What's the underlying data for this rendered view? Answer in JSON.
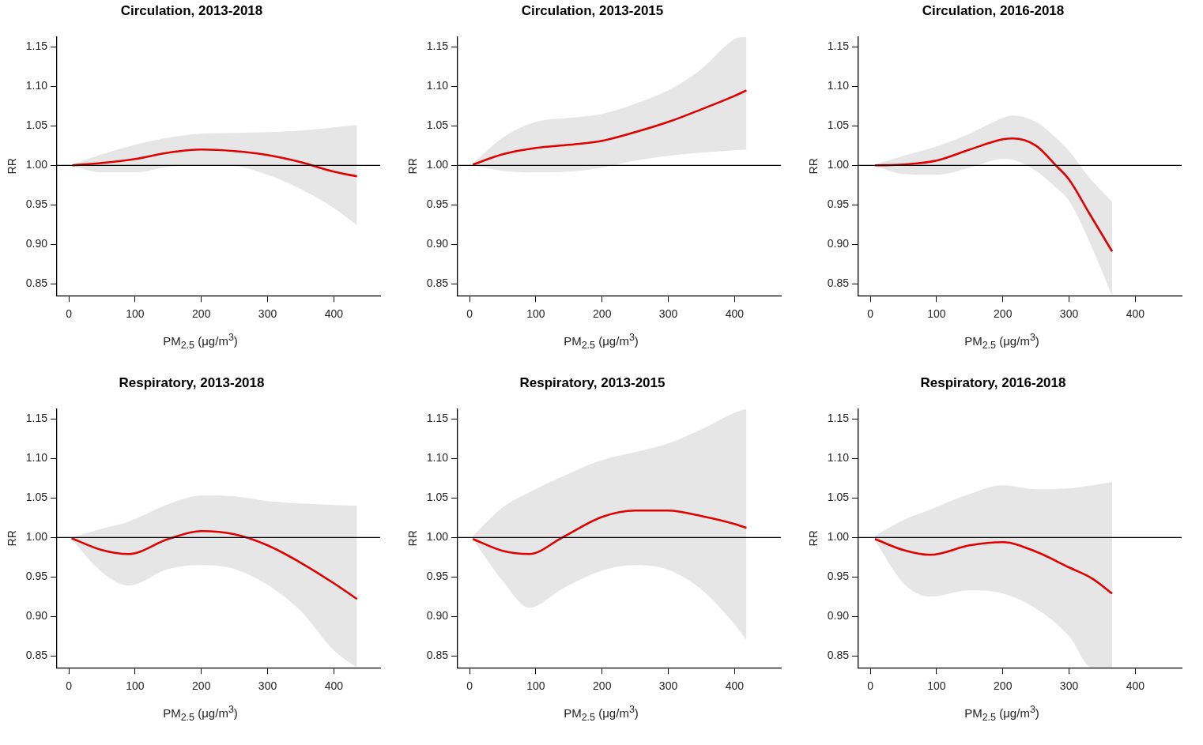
{
  "chart_data": [
    {
      "type": "line",
      "title": "Circulation, 2013-2018",
      "xlabel": "PM$_{2.5}$ (μg/m$^{3}$)",
      "ylabel": "RR",
      "xlim": [
        -18,
        470
      ],
      "ylim": [
        0.835,
        1.163
      ],
      "xticks": [
        0,
        100,
        200,
        300,
        400
      ],
      "yticks": [
        0.85,
        {
          "value": 0.9,
          "label": "0.90"
        },
        0.95,
        {
          "value": 1,
          "label": "1.00"
        },
        1.05,
        {
          "value": 1.1,
          "label": "1.10"
        },
        1.15
      ],
      "ref_lines": [
        {
          "axis": "y",
          "value": 1,
          "color": "#000000"
        }
      ],
      "series": [
        {
          "color": "#e00000",
          "x": [
            5,
            50,
            100,
            150,
            200,
            250,
            300,
            350,
            400,
            435
          ],
          "values": [
            1.0,
            1.003,
            1.008,
            1.016,
            1.02,
            1.018,
            1.013,
            1.004,
            0.992,
            0.986
          ],
          "lower": [
            0.999,
            0.991,
            0.991,
            0.998,
            1.0,
            0.999,
            0.988,
            0.97,
            0.946,
            0.924
          ],
          "upper": [
            1.001,
            1.014,
            1.026,
            1.035,
            1.04,
            1.041,
            1.042,
            1.044,
            1.048,
            1.051
          ]
        }
      ]
    },
    {
      "type": "line",
      "title": "Circulation, 2013-2015",
      "xlabel": "PM$_{2.5}$ (μg/m$^{3}$)",
      "ylabel": "RR",
      "xlim": [
        -18,
        470
      ],
      "ylim": [
        0.835,
        1.163
      ],
      "xticks": [
        0,
        100,
        200,
        300,
        400
      ],
      "yticks": [
        0.85,
        {
          "value": 0.9,
          "label": "0.90"
        },
        0.95,
        {
          "value": 1,
          "label": "1.00"
        },
        1.05,
        {
          "value": 1.1,
          "label": "1.10"
        },
        1.15
      ],
      "ref_lines": [
        {
          "axis": "y",
          "value": 1,
          "color": "#000000"
        }
      ],
      "series": [
        {
          "color": "#e00000",
          "x": [
            5,
            50,
            100,
            150,
            200,
            250,
            300,
            350,
            400,
            418
          ],
          "values": [
            1.001,
            1.014,
            1.022,
            1.026,
            1.031,
            1.042,
            1.055,
            1.071,
            1.088,
            1.095
          ],
          "lower": [
            1.0,
            0.993,
            0.991,
            0.992,
            0.997,
            1.006,
            1.012,
            1.016,
            1.019,
            1.02
          ],
          "upper": [
            1.002,
            1.035,
            1.055,
            1.06,
            1.065,
            1.078,
            1.095,
            1.122,
            1.16,
            1.163
          ]
        }
      ]
    },
    {
      "type": "line",
      "title": "Circulation, 2016-2018",
      "xlabel": "PM$_{2.5}$ (μg/m$^{3}$)",
      "ylabel": "RR",
      "xlim": [
        -18,
        470
      ],
      "ylim": [
        0.835,
        1.163
      ],
      "xticks": [
        0,
        100,
        200,
        300,
        400
      ],
      "yticks": [
        0.85,
        {
          "value": 0.9,
          "label": "0.90"
        },
        0.95,
        {
          "value": 1,
          "label": "1.00"
        },
        1.05,
        {
          "value": 1.1,
          "label": "1.10"
        },
        1.15
      ],
      "ref_lines": [
        {
          "axis": "y",
          "value": 1,
          "color": "#000000"
        }
      ],
      "series": [
        {
          "color": "#e00000",
          "x": [
            7,
            50,
            100,
            150,
            200,
            215,
            250,
            280,
            300,
            330,
            365
          ],
          "values": [
            1.0,
            1.001,
            1.006,
            1.02,
            1.033,
            1.034,
            1.025,
            1.0,
            0.982,
            0.94,
            0.891
          ],
          "lower": [
            0.999,
            0.989,
            0.988,
            0.997,
            1.008,
            1.007,
            0.993,
            0.972,
            0.955,
            0.905,
            0.835
          ],
          "upper": [
            1.001,
            1.012,
            1.024,
            1.04,
            1.06,
            1.063,
            1.055,
            1.035,
            1.018,
            0.985,
            0.954
          ]
        }
      ]
    },
    {
      "type": "line",
      "title": "Respiratory, 2013-2018",
      "xlabel": "PM$_{2.5}$ (μg/m$^{3}$)",
      "ylabel": "RR",
      "xlim": [
        -18,
        470
      ],
      "ylim": [
        0.835,
        1.163
      ],
      "xticks": [
        0,
        100,
        200,
        300,
        400
      ],
      "yticks": [
        0.85,
        {
          "value": 0.9,
          "label": "0.90"
        },
        0.95,
        {
          "value": 1,
          "label": "1.00"
        },
        1.05,
        {
          "value": 1.1,
          "label": "1.10"
        },
        1.15
      ],
      "ref_lines": [
        {
          "axis": "y",
          "value": 1,
          "color": "#000000"
        }
      ],
      "series": [
        {
          "color": "#e00000",
          "x": [
            4,
            50,
            90,
            150,
            200,
            250,
            300,
            350,
            400,
            435
          ],
          "values": [
            0.999,
            0.984,
            0.979,
            0.998,
            1.008,
            1.004,
            0.99,
            0.968,
            0.942,
            0.922
          ],
          "lower": [
            0.998,
            0.956,
            0.939,
            0.96,
            0.965,
            0.96,
            0.94,
            0.907,
            0.857,
            0.835
          ],
          "upper": [
            1.0,
            1.011,
            1.02,
            1.042,
            1.053,
            1.052,
            1.046,
            1.043,
            1.041,
            1.04
          ]
        }
      ]
    },
    {
      "type": "line",
      "title": "Respiratory, 2013-2015",
      "xlabel": "PM$_{2.5}$ (μg/m$^{3}$)",
      "ylabel": "RR",
      "xlim": [
        -18,
        470
      ],
      "ylim": [
        0.835,
        1.163
      ],
      "xticks": [
        0,
        100,
        200,
        300,
        400
      ],
      "yticks": [
        0.85,
        {
          "value": 0.9,
          "label": "0.90"
        },
        0.95,
        {
          "value": 1,
          "label": "1.00"
        },
        1.05,
        {
          "value": 1.1,
          "label": "1.10"
        },
        1.15
      ],
      "ref_lines": [
        {
          "axis": "y",
          "value": 1,
          "color": "#000000"
        }
      ],
      "series": [
        {
          "color": "#e00000",
          "x": [
            5,
            50,
            90,
            140,
            200,
            250,
            300,
            350,
            400,
            418
          ],
          "values": [
            0.998,
            0.983,
            0.979,
            1.0,
            1.026,
            1.034,
            1.034,
            1.027,
            1.017,
            1.012
          ],
          "lower": [
            0.997,
            0.945,
            0.911,
            0.935,
            0.958,
            0.965,
            0.959,
            0.934,
            0.89,
            0.87
          ],
          "upper": [
            1.002,
            1.038,
            1.057,
            1.077,
            1.098,
            1.108,
            1.119,
            1.137,
            1.158,
            1.163
          ]
        }
      ]
    },
    {
      "type": "line",
      "title": "Respiratory, 2016-2018",
      "xlabel": "PM$_{2.5}$ (μg/m$^{3}$)",
      "ylabel": "RR",
      "xlim": [
        -18,
        470
      ],
      "ylim": [
        0.835,
        1.163
      ],
      "xticks": [
        0,
        100,
        200,
        300,
        400
      ],
      "yticks": [
        0.85,
        {
          "value": 0.9,
          "label": "0.90"
        },
        0.95,
        {
          "value": 1,
          "label": "1.00"
        },
        1.05,
        {
          "value": 1.1,
          "label": "1.10"
        },
        1.15
      ],
      "ref_lines": [
        {
          "axis": "y",
          "value": 1,
          "color": "#000000"
        }
      ],
      "series": [
        {
          "color": "#e00000",
          "x": [
            7,
            50,
            90,
            150,
            200,
            250,
            300,
            335,
            365
          ],
          "values": [
            0.998,
            0.984,
            0.978,
            0.99,
            0.994,
            0.982,
            0.962,
            0.948,
            0.929
          ],
          "lower": [
            0.996,
            0.942,
            0.925,
            0.933,
            0.929,
            0.91,
            0.875,
            0.835,
            0.835
          ],
          "upper": [
            1.002,
            1.022,
            1.035,
            1.055,
            1.066,
            1.061,
            1.062,
            1.066,
            1.07
          ]
        }
      ]
    }
  ]
}
